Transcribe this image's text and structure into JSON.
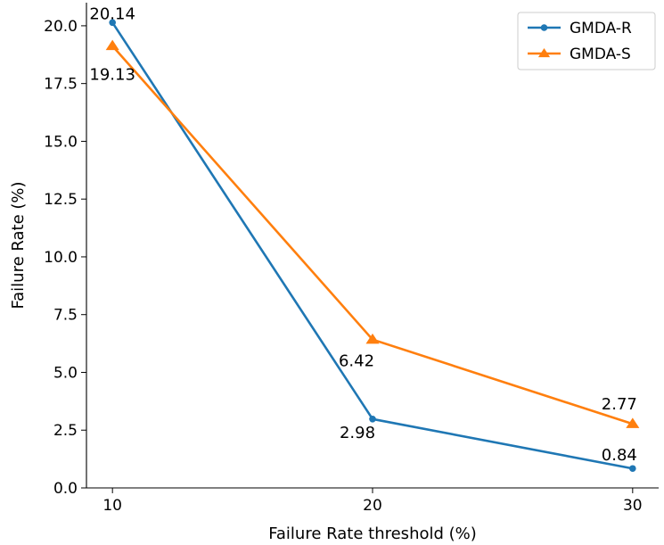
{
  "chart_data": {
    "type": "line",
    "title": "",
    "xlabel": "Failure Rate threshold (%)",
    "ylabel": "Failure Rate (%)",
    "x": [
      10,
      20,
      30
    ],
    "xlim": [
      9,
      31
    ],
    "ylim": [
      0,
      21
    ],
    "x_ticks": [
      10,
      20,
      30
    ],
    "y_ticks": [
      0.0,
      2.5,
      5.0,
      7.5,
      10.0,
      12.5,
      15.0,
      17.5,
      20.0
    ],
    "x_tick_labels": [
      "10",
      "20",
      "30"
    ],
    "y_tick_labels": [
      "0.0",
      "2.5",
      "5.0",
      "7.5",
      "10.0",
      "12.5",
      "15.0",
      "17.5",
      "20.0"
    ],
    "grid": false,
    "legend_position": "top-right",
    "series": [
      {
        "name": "GMDA-R",
        "values": [
          20.14,
          2.98,
          0.84
        ],
        "labels": [
          "20.14",
          "2.98",
          "0.84"
        ],
        "color": "#1f77b4",
        "marker": "circle"
      },
      {
        "name": "GMDA-S",
        "values": [
          19.13,
          6.42,
          2.77
        ],
        "labels": [
          "19.13",
          "6.42",
          "2.77"
        ],
        "color": "#ff7f0e",
        "marker": "triangle"
      }
    ]
  }
}
